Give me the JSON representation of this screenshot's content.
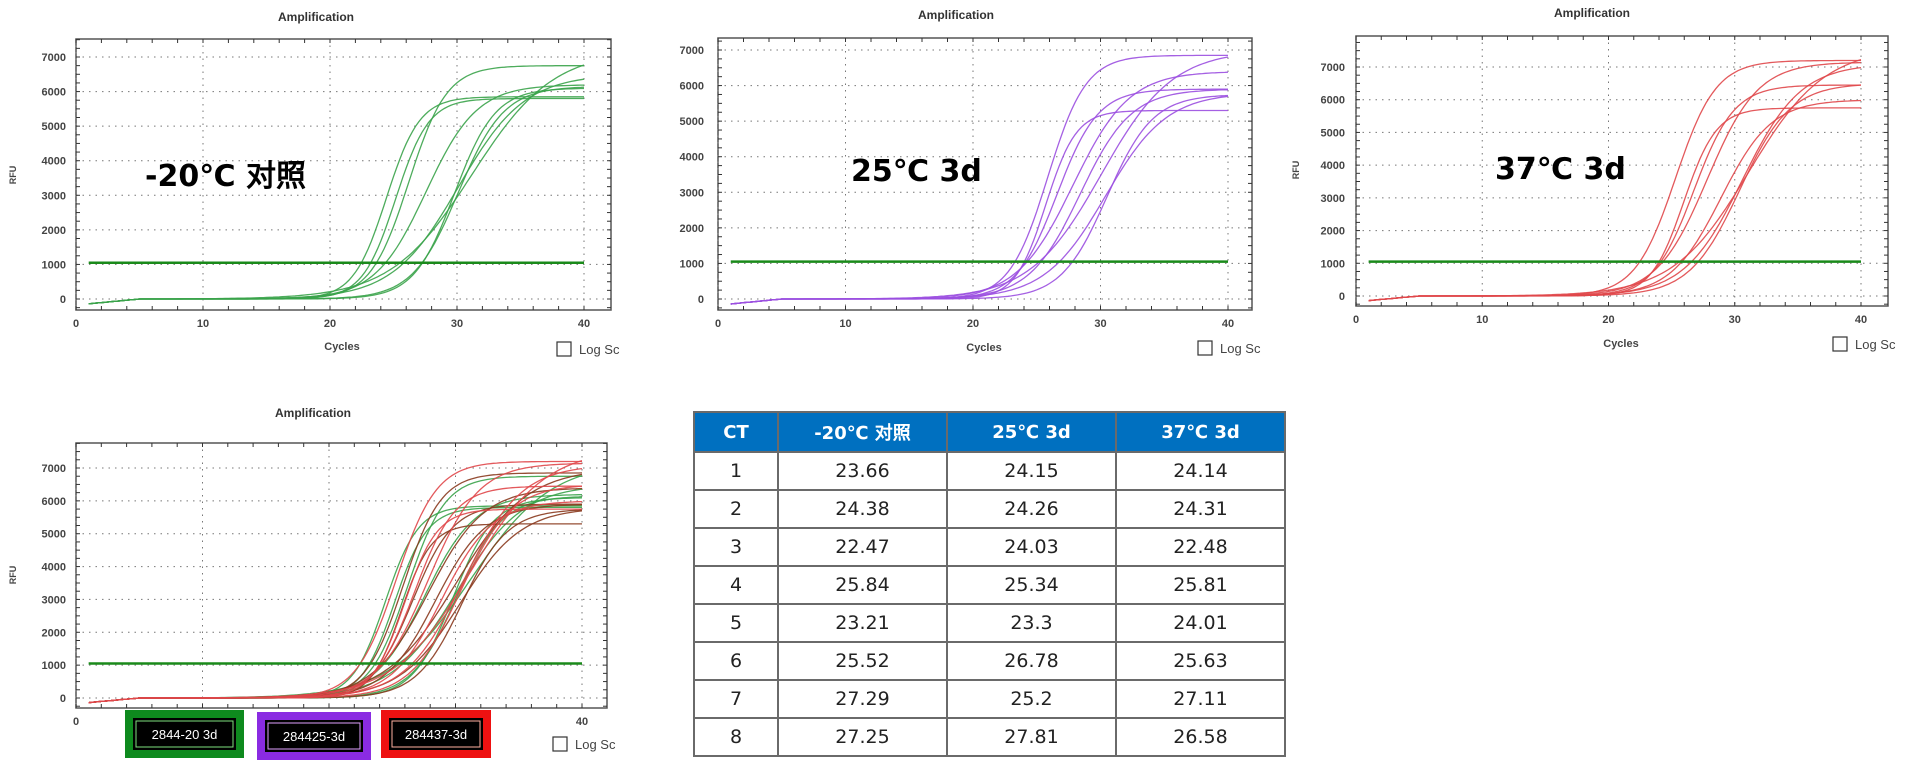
{
  "chart_data": [
    {
      "type": "line",
      "title": "Amplification",
      "xlabel": "Cycles",
      "ylabel": "RFU",
      "overlay_label": "-20℃  对照",
      "log_scale_label": "Log Sc",
      "log_scale_checked": false,
      "xlim": [
        0,
        42
      ],
      "ylim": [
        -250,
        7500
      ],
      "xticks": [
        0,
        10,
        20,
        30,
        40
      ],
      "yticks": [
        0,
        1000,
        2000,
        3000,
        4000,
        5000,
        6000,
        7000
      ],
      "threshold": 1050,
      "threshold_color": "#1a8a1a",
      "series": [
        {
          "name": "-20℃ 对照",
          "color": "#3aa34a",
          "ct": [
            23.66,
            24.38,
            22.47,
            25.84,
            23.21,
            25.52,
            27.29,
            27.25
          ],
          "plateau": [
            6750,
            6200,
            5850,
            6500,
            5800,
            7200,
            6100,
            6150
          ],
          "slope": [
            1.5,
            2.0,
            1.3,
            2.6,
            1.3,
            3.2,
            1.6,
            1.8
          ]
        }
      ]
    },
    {
      "type": "line",
      "title": "Amplification",
      "xlabel": "Cycles",
      "ylabel": "",
      "overlay_label": "25℃  3d",
      "log_scale_label": "Log Sc",
      "log_scale_checked": false,
      "xlim": [
        0,
        42
      ],
      "ylim": [
        -250,
        7300
      ],
      "xticks": [
        0,
        10,
        20,
        30,
        40
      ],
      "yticks": [
        0,
        1000,
        2000,
        3000,
        4000,
        5000,
        6000,
        7000
      ],
      "threshold": 1050,
      "threshold_color": "#1a8a1a",
      "series": [
        {
          "name": "25℃ 3d",
          "color": "#9b4fe0",
          "ct": [
            24.15,
            24.26,
            24.03,
            25.34,
            23.3,
            26.78,
            25.2,
            27.81
          ],
          "plateau": [
            5900,
            6400,
            5300,
            5900,
            6850,
            5800,
            7000,
            5750
          ],
          "slope": [
            1.6,
            2.2,
            1.2,
            2.0,
            1.5,
            2.4,
            2.8,
            1.8
          ]
        }
      ]
    },
    {
      "type": "line",
      "title": "Amplification",
      "xlabel": "Cycles",
      "ylabel": "RFU",
      "overlay_label": "37℃  3d",
      "log_scale_label": "Log Sc",
      "log_scale_checked": false,
      "xlim": [
        0,
        42
      ],
      "ylim": [
        -250,
        7900
      ],
      "xticks": [
        0,
        10,
        20,
        30,
        40
      ],
      "yticks": [
        0,
        1000,
        2000,
        3000,
        4000,
        5000,
        6000,
        7000
      ],
      "threshold": 1050,
      "threshold_color": "#1a8a1a",
      "series": [
        {
          "name": "37℃ 3d",
          "color": "#e0474a",
          "ct": [
            24.14,
            24.31,
            22.48,
            25.81,
            24.01,
            25.63,
            27.11,
            26.58
          ],
          "plateau": [
            6450,
            7150,
            7200,
            6000,
            5750,
            7600,
            6500,
            7100
          ],
          "slope": [
            1.6,
            2.0,
            1.6,
            2.0,
            1.3,
            3.0,
            2.0,
            2.3
          ]
        }
      ]
    },
    {
      "type": "line",
      "title": "Amplification",
      "xlabel": "",
      "ylabel": "RFU",
      "log_scale_label": "Log Sc",
      "log_scale_checked": false,
      "xlim": [
        0,
        42
      ],
      "ylim": [
        -250,
        7750
      ],
      "xticks": [
        0,
        40
      ],
      "yticks": [
        0,
        1000,
        2000,
        3000,
        4000,
        5000,
        6000,
        7000
      ],
      "threshold": 1050,
      "threshold_color": "#1a8a1a",
      "series": [
        {
          "name": "2844-20 3d",
          "color": "#3aa34a",
          "ct": [
            23.66,
            24.38,
            22.47,
            25.84,
            23.21,
            25.52,
            27.29,
            27.25
          ],
          "plateau": [
            6750,
            6200,
            5850,
            6500,
            5800,
            7200,
            6100,
            6150
          ],
          "slope": [
            1.5,
            2.0,
            1.3,
            2.6,
            1.3,
            3.2,
            1.6,
            1.8
          ]
        },
        {
          "name": "284425-3d",
          "color": "#8a3a1e",
          "ct": [
            24.15,
            24.26,
            24.03,
            25.34,
            23.3,
            26.78,
            25.2,
            27.81
          ],
          "plateau": [
            5900,
            6400,
            5300,
            5900,
            6850,
            5800,
            7000,
            5750
          ],
          "slope": [
            1.6,
            2.2,
            1.2,
            2.0,
            1.5,
            2.4,
            2.8,
            1.8
          ]
        },
        {
          "name": "284437-3d",
          "color": "#e0474a",
          "ct": [
            24.14,
            24.31,
            22.48,
            25.81,
            24.01,
            25.63,
            27.11,
            26.58
          ],
          "plateau": [
            6450,
            7150,
            7200,
            6000,
            5750,
            7600,
            6500,
            7100
          ],
          "slope": [
            1.6,
            2.0,
            1.6,
            2.0,
            1.3,
            3.0,
            2.0,
            2.3
          ]
        }
      ],
      "legend": [
        {
          "label": "2844-20 3d",
          "color": "#0e8a1e",
          "inner": "#7ee07e"
        },
        {
          "label": "284425-3d",
          "color": "#8a2be2",
          "inner": "#e0a0ff"
        },
        {
          "label": "284437-3d",
          "color": "#ee1111",
          "inner": "#ffb0a0"
        }
      ]
    },
    {
      "type": "table",
      "columns": [
        "CT",
        "-20℃ 对照",
        "25℃ 3d",
        "37℃ 3d"
      ],
      "rows": [
        [
          "1",
          "23.66",
          "24.15",
          "24.14"
        ],
        [
          "2",
          "24.38",
          "24.26",
          "24.31"
        ],
        [
          "3",
          "22.47",
          "24.03",
          "22.48"
        ],
        [
          "4",
          "25.84",
          "25.34",
          "25.81"
        ],
        [
          "5",
          "23.21",
          "23.3",
          "24.01"
        ],
        [
          "6",
          "25.52",
          "26.78",
          "25.63"
        ],
        [
          "7",
          "27.29",
          "25.2",
          "27.11"
        ],
        [
          "8",
          "27.25",
          "27.81",
          "26.58"
        ]
      ],
      "header_color": "#0070c0"
    }
  ]
}
